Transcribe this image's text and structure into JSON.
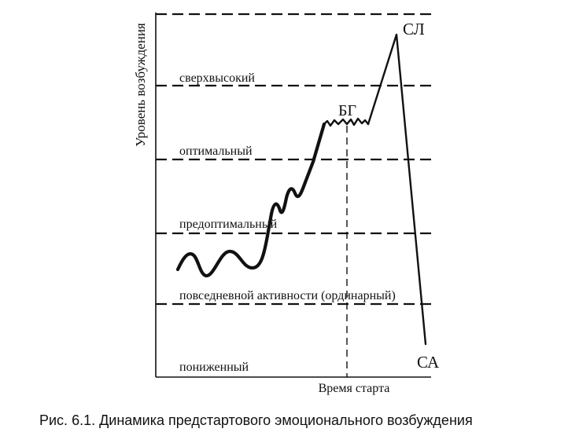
{
  "diagram": {
    "y_axis_label": "Уровень возбуждения",
    "x_axis_label": "Время старта",
    "levels": [
      {
        "label": "сверхвысокий"
      },
      {
        "label": "оптимальный"
      },
      {
        "label": "предоптимальный"
      },
      {
        "label": "повседневной активности (ординарный)"
      },
      {
        "label": "пониженный"
      }
    ],
    "points": {
      "bg": "БГ",
      "sl": "СЛ",
      "sa": "СА"
    },
    "caption": "Рис. 6.1. Динамика предстартового эмоционального возбуждения"
  }
}
